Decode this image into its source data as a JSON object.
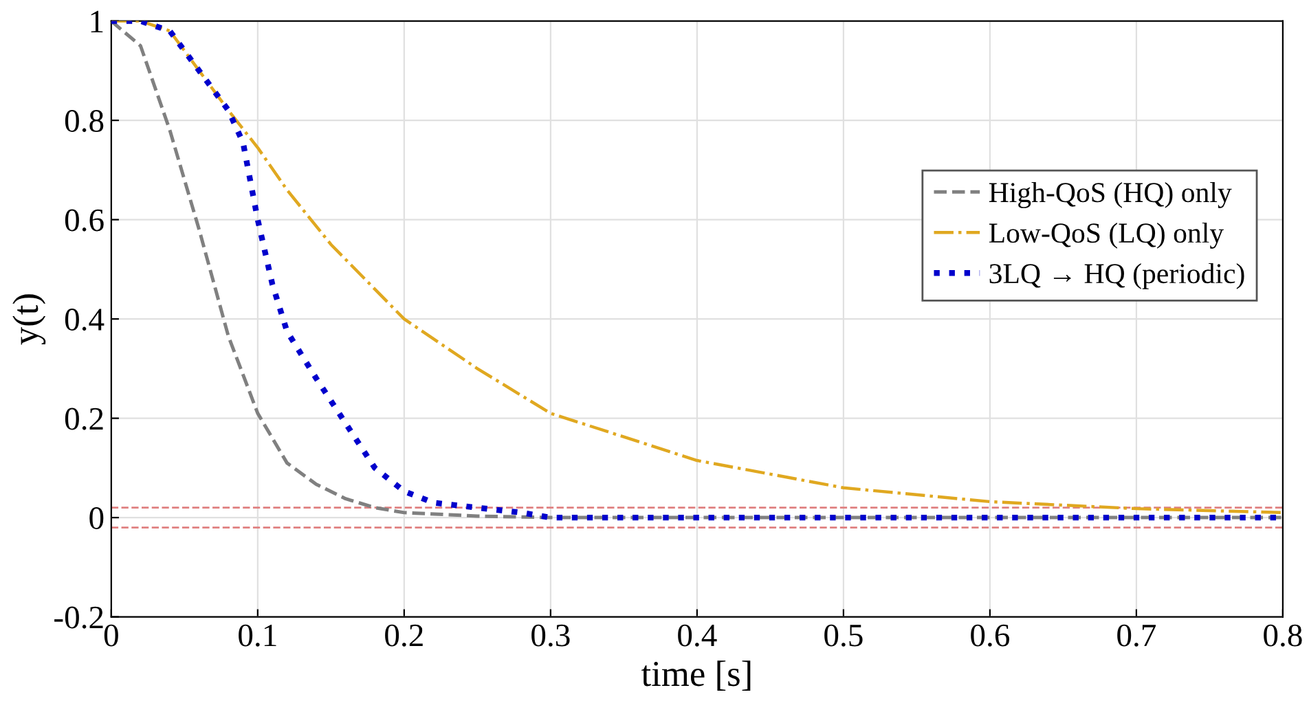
{
  "chart_data": {
    "type": "line",
    "xlabel": "time [s]",
    "ylabel": "y(t)",
    "xlim": [
      0,
      0.8
    ],
    "ylim": [
      -0.2,
      1
    ],
    "xticks": [
      0,
      0.1,
      0.2,
      0.3,
      0.4,
      0.5,
      0.6,
      0.7,
      0.8
    ],
    "yticks": [
      -0.2,
      0,
      0.2,
      0.4,
      0.6,
      0.8,
      1
    ],
    "grid": true,
    "legend": "right",
    "marker": "none",
    "series": [
      {
        "name": "High-QoS (HQ) only",
        "color": "#808080",
        "line_style": "dashed",
        "x": [
          0,
          0.02,
          0.04,
          0.06,
          0.08,
          0.1,
          0.12,
          0.14,
          0.16,
          0.18,
          0.2,
          0.25,
          0.3,
          0.8
        ],
        "values": [
          1,
          0.95,
          0.78,
          0.58,
          0.365,
          0.21,
          0.11,
          0.067,
          0.038,
          0.02,
          0.01,
          0.003,
          0,
          0
        ]
      },
      {
        "name": "Low-QoS (LQ) only",
        "color": "#e0a820",
        "line_style": "dashdot",
        "x": [
          0,
          0.02,
          0.04,
          0.06,
          0.08,
          0.1,
          0.12,
          0.15,
          0.2,
          0.25,
          0.3,
          0.4,
          0.5,
          0.6,
          0.7,
          0.8
        ],
        "values": [
          1,
          1,
          0.98,
          0.9,
          0.82,
          0.745,
          0.66,
          0.55,
          0.4,
          0.3,
          0.21,
          0.115,
          0.06,
          0.032,
          0.018,
          0.01
        ]
      },
      {
        "name": "3LQ → HQ (periodic)",
        "color": "#0000cc",
        "line_style": "dotted",
        "x": [
          0,
          0.02,
          0.04,
          0.06,
          0.08,
          0.09,
          0.1,
          0.11,
          0.12,
          0.14,
          0.16,
          0.18,
          0.2,
          0.22,
          0.25,
          0.28,
          0.3,
          0.8
        ],
        "values": [
          1,
          1,
          0.98,
          0.9,
          0.82,
          0.755,
          0.6,
          0.47,
          0.375,
          0.28,
          0.19,
          0.1,
          0.053,
          0.03,
          0.02,
          0.01,
          0,
          0
        ]
      }
    ],
    "ref_lines": [
      {
        "axis": "y",
        "value": 0.02,
        "color": "#e08080",
        "line_style": "dashed"
      },
      {
        "axis": "y",
        "value": -0.02,
        "color": "#e08080",
        "line_style": "dashed"
      }
    ]
  }
}
